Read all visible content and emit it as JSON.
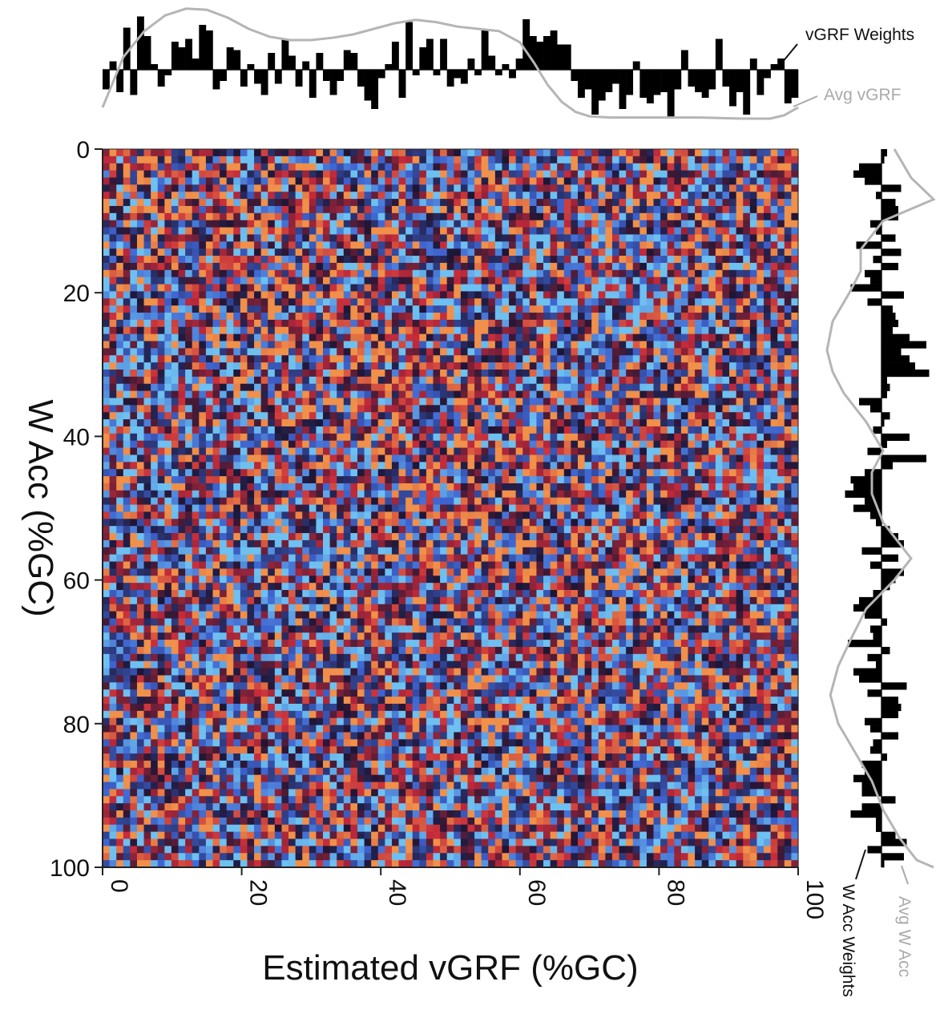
{
  "chart_data": {
    "type": "heatmap",
    "xlabel": "Estimated vGRF (%GC)",
    "ylabel": "W Acc (%GC)",
    "xlim": [
      0,
      100
    ],
    "ylim": [
      0,
      100
    ],
    "y_inverted": true,
    "x_ticks": [
      "0",
      "20",
      "40",
      "60",
      "80",
      "100"
    ],
    "y_ticks": [
      "0",
      "20",
      "40",
      "60",
      "80",
      "100"
    ],
    "grid": false,
    "grid_size": 101,
    "colormap": [
      "#6ec0f0",
      "#3e63cf",
      "#1e1535",
      "#c42a3a",
      "#f0904a"
    ],
    "annotations": {
      "top_weights": "vGRF Weights",
      "top_avg": "Avg vGRF",
      "right_weights": "W Acc Weights",
      "right_avg": "Avg W Acc"
    },
    "top_weights": [
      -0.35,
      0.15,
      -0.4,
      0.75,
      -0.45,
      0.95,
      0.6,
      0.1,
      -0.3,
      -0.1,
      0.5,
      0.4,
      0.55,
      0.2,
      0.8,
      0.7,
      -0.35,
      -0.2,
      0.4,
      0.35,
      -0.3,
      0.1,
      -0.25,
      -0.45,
      0.3,
      -0.25,
      0.55,
      0.25,
      -0.3,
      0.15,
      -0.5,
      0.3,
      -0.2,
      -0.45,
      -0.2,
      0.35,
      0.3,
      -0.3,
      -0.55,
      -0.7,
      -0.15,
      0.1,
      0.5,
      -0.5,
      0.85,
      -0.1,
      0.4,
      0.55,
      -0.1,
      0.55,
      -0.3,
      -0.15,
      -0.25,
      0.2,
      -0.1,
      0.7,
      0.25,
      -0.1,
      0.1,
      -0.15,
      0.2,
      0.9,
      0.6,
      0.5,
      0.6,
      0.7,
      0.45,
      0.45,
      -0.2,
      -0.5,
      -0.35,
      -0.8,
      -0.55,
      -0.4,
      -0.25,
      -0.7,
      -0.45,
      0.15,
      -0.5,
      -0.6,
      -0.45,
      -0.4,
      -0.85,
      -0.35,
      0.35,
      -0.3,
      -0.4,
      -0.5,
      -0.35,
      0.55,
      -0.3,
      -0.65,
      -0.4,
      -0.8,
      0.2,
      -0.45,
      -0.15,
      0.1,
      0.2,
      -0.6,
      -0.5
    ],
    "right_weights": [
      0.1,
      0.05,
      -0.4,
      -0.5,
      -0.3,
      0.35,
      -0.1,
      0.25,
      0.3,
      0.3,
      -0.2,
      -0.1,
      0.25,
      -0.45,
      0.35,
      -0.15,
      0.3,
      -0.3,
      -0.2,
      -0.55,
      0.4,
      -0.25,
      0.2,
      0.25,
      0.3,
      0.2,
      0.5,
      0.8,
      0.35,
      0.5,
      0.6,
      0.85,
      0.1,
      0.15,
      0.1,
      -0.4,
      -0.2,
      0.15,
      0.05,
      -0.15,
      0.5,
      0.1,
      -0.25,
      0.8,
      0.2,
      -0.3,
      -0.55,
      -0.5,
      -0.65,
      -0.3,
      -0.5,
      -0.2,
      -0.1,
      0.15,
      0.3,
      0.4,
      -0.35,
      0.3,
      -0.2,
      0.4,
      0.25,
      0.15,
      -0.15,
      -0.4,
      -0.5,
      -0.3,
      0.1,
      -0.2,
      -0.15,
      -0.6,
      0.15,
      -0.25,
      -0.1,
      -0.5,
      -0.4,
      0.45,
      -0.25,
      0.3,
      0.35,
      0.3,
      -0.3,
      -0.2,
      0.3,
      -0.15,
      -0.2,
      0.1,
      -0.35,
      -0.3,
      -0.5,
      -0.35,
      -0.35,
      0.25,
      -0.35,
      -0.55,
      -0.1,
      -0.1,
      0.25,
      0.45,
      -0.25,
      0.4,
      0.05
    ],
    "top_avg": [
      [
        0,
        0.1
      ],
      [
        3,
        0.55
      ],
      [
        6,
        0.78
      ],
      [
        9,
        0.92
      ],
      [
        12,
        0.98
      ],
      [
        15,
        0.97
      ],
      [
        18,
        0.9
      ],
      [
        21,
        0.8
      ],
      [
        24,
        0.73
      ],
      [
        27,
        0.7
      ],
      [
        30,
        0.7
      ],
      [
        33,
        0.72
      ],
      [
        36,
        0.75
      ],
      [
        39,
        0.8
      ],
      [
        42,
        0.85
      ],
      [
        45,
        0.88
      ],
      [
        48,
        0.86
      ],
      [
        51,
        0.82
      ],
      [
        54,
        0.8
      ],
      [
        57,
        0.78
      ],
      [
        60,
        0.68
      ],
      [
        62,
        0.5
      ],
      [
        64,
        0.3
      ],
      [
        66,
        0.15
      ],
      [
        68,
        0.06
      ],
      [
        70,
        0.02
      ],
      [
        73,
        0.01
      ],
      [
        80,
        0.01
      ],
      [
        86,
        0.01
      ],
      [
        92,
        0.0
      ],
      [
        96,
        0.0
      ],
      [
        98,
        0.03
      ],
      [
        100,
        0.1
      ]
    ],
    "right_avg": [
      [
        0,
        0.6
      ],
      [
        4,
        0.75
      ],
      [
        7,
        0.95
      ],
      [
        10,
        0.5
      ],
      [
        14,
        0.3
      ],
      [
        17,
        0.3
      ],
      [
        20,
        0.2
      ],
      [
        24,
        0.05
      ],
      [
        28,
        0.0
      ],
      [
        31,
        0.05
      ],
      [
        34,
        0.15
      ],
      [
        38,
        0.35
      ],
      [
        42,
        0.5
      ],
      [
        45,
        0.4
      ],
      [
        48,
        0.4
      ],
      [
        52,
        0.5
      ],
      [
        55,
        0.65
      ],
      [
        57,
        0.75
      ],
      [
        60,
        0.6
      ],
      [
        64,
        0.35
      ],
      [
        68,
        0.22
      ],
      [
        72,
        0.1
      ],
      [
        76,
        0.03
      ],
      [
        80,
        0.1
      ],
      [
        84,
        0.25
      ],
      [
        88,
        0.4
      ],
      [
        92,
        0.5
      ],
      [
        96,
        0.65
      ],
      [
        99,
        0.8
      ],
      [
        100,
        0.95
      ]
    ]
  }
}
